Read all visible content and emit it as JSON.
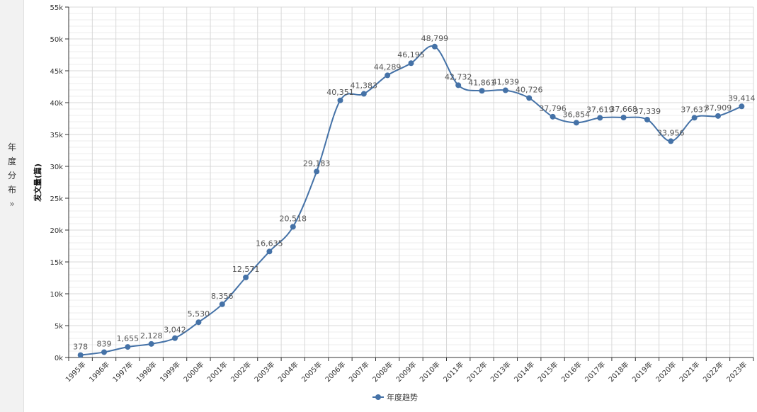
{
  "sidebar": {
    "tab_chars": [
      "年",
      "度",
      "分",
      "布"
    ],
    "expand_icon": "double-chevron-right-icon",
    "expand_glyph": "»"
  },
  "colors": {
    "series": "#4572a7",
    "grid": "#d8d8d8",
    "axis": "#333333",
    "panel": "#f2f2f2"
  },
  "chart_data": {
    "type": "line",
    "title": "",
    "ylabel": "发文量(篇)",
    "xlabel": "",
    "ylim": [
      0,
      55000
    ],
    "y_ticks": [
      "0k",
      "5k",
      "10k",
      "15k",
      "20k",
      "25k",
      "30k",
      "35k",
      "40k",
      "45k",
      "50k",
      "55k"
    ],
    "grid": true,
    "legend_position": "bottom",
    "categories": [
      "1995年",
      "1996年",
      "1997年",
      "1998年",
      "1999年",
      "2000年",
      "2001年",
      "2002年",
      "2003年",
      "2004年",
      "2005年",
      "2006年",
      "2007年",
      "2008年",
      "2009年",
      "2010年",
      "2011年",
      "2012年",
      "2013年",
      "2014年",
      "2015年",
      "2016年",
      "2017年",
      "2018年",
      "2019年",
      "2020年",
      "2021年",
      "2022年",
      "2023年"
    ],
    "series": [
      {
        "name": "年度趋势",
        "values": [
          378,
          839,
          1655,
          2128,
          3042,
          5530,
          8356,
          12571,
          16635,
          20518,
          29183,
          40351,
          41383,
          44289,
          46195,
          48799,
          42732,
          41861,
          41939,
          40726,
          37796,
          36854,
          37619,
          37668,
          37339,
          33956,
          37637,
          37909,
          39414
        ],
        "labels": [
          "378",
          "839",
          "1,655",
          "2,128",
          "3,042",
          "5,530",
          "8,356",
          "12,571",
          "16,635",
          "20,518",
          "29,183",
          "40,351",
          "41,383",
          "44,289",
          "46,195",
          "48,799",
          "42,732",
          "41,861",
          "41,939",
          "40,726",
          "37,796",
          "36,854",
          "37,619",
          "37,668",
          "37,339",
          "33,956",
          "37,637",
          "37,909",
          "39,414"
        ]
      }
    ]
  }
}
